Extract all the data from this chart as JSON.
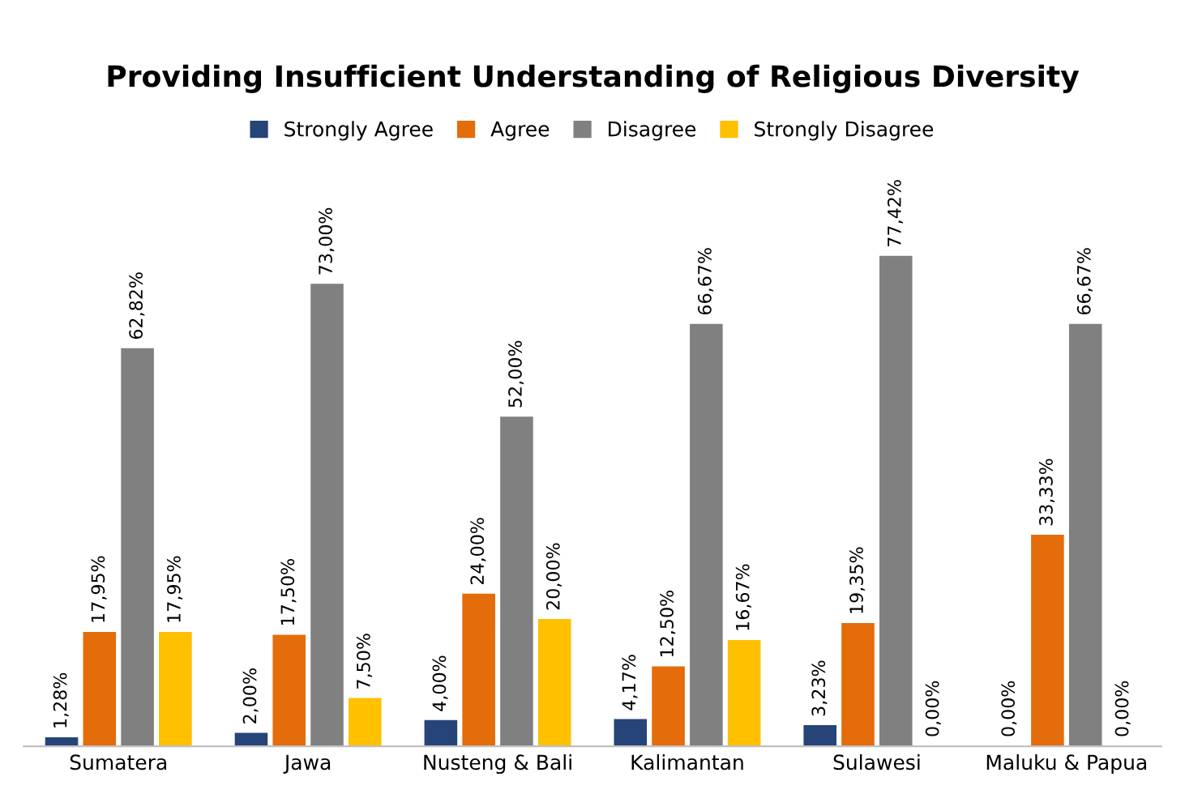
{
  "chart_data": {
    "type": "bar",
    "title": "Providing Insufficient Understanding of Religious Diversity",
    "categories": [
      "Sumatera",
      "Jawa",
      "Nusteng & Bali",
      "Kalimantan",
      "Sulawesi",
      "Maluku & Papua"
    ],
    "series": [
      {
        "name": "Strongly Agree",
        "color": "#264478",
        "values": [
          1.28,
          2.0,
          4.0,
          4.17,
          3.23,
          0.0
        ],
        "value_labels": [
          "1,28%",
          "2,00%",
          "4,00%",
          "4,17%",
          "3,23%",
          "0,00%"
        ]
      },
      {
        "name": "Agree",
        "color": "#e46c0a",
        "values": [
          17.95,
          17.5,
          24.0,
          12.5,
          19.35,
          33.33
        ],
        "value_labels": [
          "17,95%",
          "17,50%",
          "24,00%",
          "12,50%",
          "19,35%",
          "33,33%"
        ]
      },
      {
        "name": "Disagree",
        "color": "#808080",
        "values": [
          62.82,
          73.0,
          52.0,
          66.67,
          77.42,
          66.67
        ],
        "value_labels": [
          "62,82%",
          "73,00%",
          "52,00%",
          "66,67%",
          "77,42%",
          "66,67%"
        ]
      },
      {
        "name": "Strongly Disagree",
        "color": "#ffc000",
        "values": [
          17.95,
          7.5,
          20.0,
          16.67,
          0.0,
          0.0
        ],
        "value_labels": [
          "17,95%",
          "7,50%",
          "20,00%",
          "16,67%",
          "0,00%",
          "0,00%"
        ]
      }
    ],
    "legend": "top",
    "grid": false
  }
}
